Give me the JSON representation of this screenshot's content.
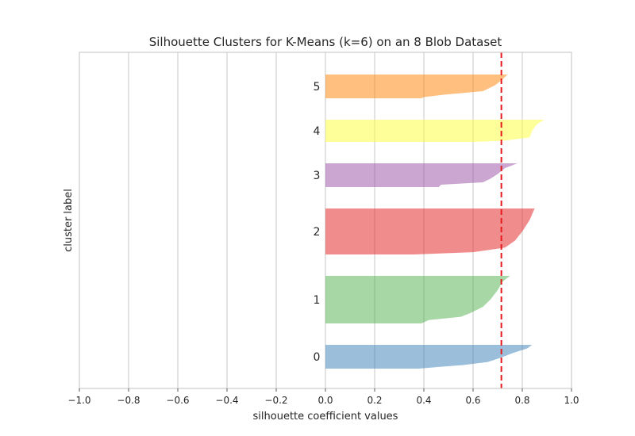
{
  "chart_data": {
    "type": "area",
    "title": "Silhouette Clusters for K-Means (k=6) on an 8 Blob Dataset",
    "xlabel": "silhouette coefficient values",
    "ylabel": "cluster label",
    "xlim": [
      -1.0,
      1.0
    ],
    "x_ticks": [
      "−1.0",
      "−0.8",
      "−0.6",
      "−0.4",
      "−0.2",
      "0.0",
      "0.2",
      "0.4",
      "0.6",
      "0.8",
      "1.0"
    ],
    "x_tick_values": [
      -1.0,
      -0.8,
      -0.6,
      -0.4,
      -0.2,
      0.0,
      0.2,
      0.4,
      0.6,
      0.8,
      1.0
    ],
    "grid": "vertical",
    "average_silhouette_score": 0.715,
    "average_line_color": "#e41a1c",
    "clusters": [
      {
        "label": "0",
        "color": "#377eb8",
        "profile": [
          [
            0.0,
            0.84
          ],
          [
            0.15,
            0.82
          ],
          [
            0.35,
            0.76
          ],
          [
            0.55,
            0.71
          ],
          [
            0.72,
            0.66
          ],
          [
            0.85,
            0.56
          ],
          [
            0.93,
            0.46
          ],
          [
            1.0,
            0.38
          ]
        ]
      },
      {
        "label": "1",
        "color": "#4daf4a",
        "profile": [
          [
            0.0,
            0.75
          ],
          [
            0.12,
            0.72
          ],
          [
            0.3,
            0.7
          ],
          [
            0.5,
            0.67
          ],
          [
            0.65,
            0.64
          ],
          [
            0.78,
            0.59
          ],
          [
            0.86,
            0.55
          ],
          [
            0.93,
            0.42
          ],
          [
            1.0,
            0.39
          ]
        ]
      },
      {
        "label": "2",
        "color": "#e41a1c",
        "profile": [
          [
            0.0,
            0.85
          ],
          [
            0.25,
            0.83
          ],
          [
            0.5,
            0.8
          ],
          [
            0.7,
            0.77
          ],
          [
            0.85,
            0.73
          ],
          [
            0.95,
            0.6
          ],
          [
            1.0,
            0.36
          ]
        ]
      },
      {
        "label": "3",
        "color": "#984ea3",
        "profile": [
          [
            0.0,
            0.78
          ],
          [
            0.2,
            0.73
          ],
          [
            0.45,
            0.7
          ],
          [
            0.65,
            0.67
          ],
          [
            0.8,
            0.64
          ],
          [
            0.9,
            0.47
          ],
          [
            1.0,
            0.46
          ]
        ]
      },
      {
        "label": "4",
        "color": "#ffff33",
        "profile": [
          [
            0.0,
            0.89
          ],
          [
            0.2,
            0.86
          ],
          [
            0.5,
            0.84
          ],
          [
            0.8,
            0.83
          ],
          [
            0.95,
            0.72
          ],
          [
            1.0,
            0.6
          ]
        ]
      },
      {
        "label": "5",
        "color": "#ff7f00",
        "profile": [
          [
            0.0,
            0.74
          ],
          [
            0.2,
            0.72
          ],
          [
            0.45,
            0.69
          ],
          [
            0.7,
            0.64
          ],
          [
            0.85,
            0.48
          ],
          [
            0.95,
            0.4
          ],
          [
            1.0,
            0.39
          ]
        ]
      }
    ]
  }
}
